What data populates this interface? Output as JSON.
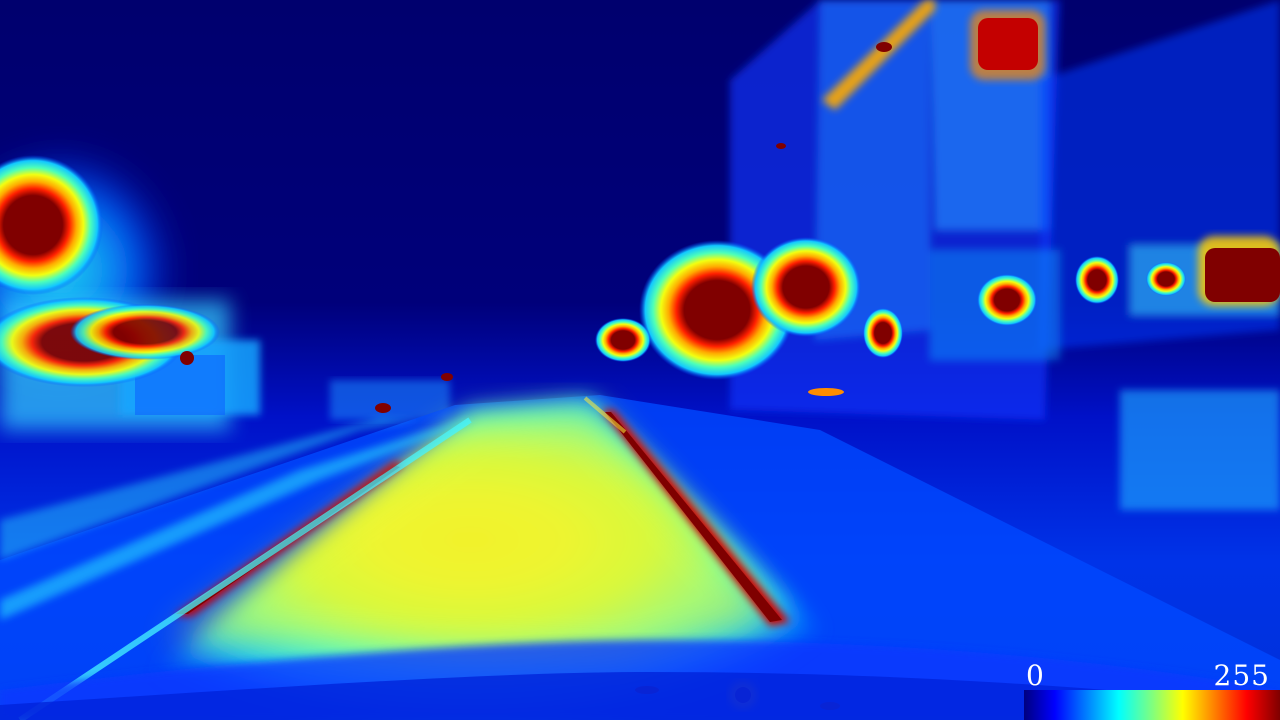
{
  "image": {
    "description_kind": "thermal-style jet colormap street scene",
    "colormap": "jet",
    "colors": {
      "background": "#00007a",
      "road_glow": "#e8f53a",
      "hot": "#800000",
      "warm": "#ff4a00",
      "cyan": "#25d7ff",
      "mid_blue": "#0038ff"
    }
  },
  "colorbar": {
    "min_label": "0",
    "max_label": "255",
    "stops": [
      {
        "offset": 0.0,
        "color": "#00007f"
      },
      {
        "offset": 0.12,
        "color": "#0000ff"
      },
      {
        "offset": 0.37,
        "color": "#00ffff"
      },
      {
        "offset": 0.5,
        "color": "#7fff7f"
      },
      {
        "offset": 0.62,
        "color": "#ffff00"
      },
      {
        "offset": 0.87,
        "color": "#ff0000"
      },
      {
        "offset": 1.0,
        "color": "#7f0000"
      }
    ]
  }
}
